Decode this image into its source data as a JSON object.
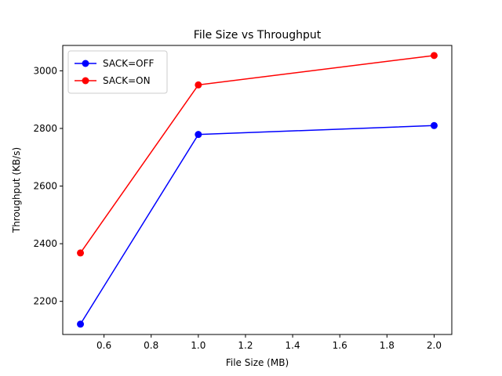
{
  "chart_data": {
    "type": "line",
    "title": "File Size vs Throughput",
    "xlabel": "File Size (MB)",
    "ylabel": "Throughput (KB/s)",
    "x": [
      0.5,
      1.0,
      2.0
    ],
    "series": [
      {
        "name": "SACK=OFF",
        "color": "#0000ff",
        "values": [
          2121,
          2779,
          2810
        ]
      },
      {
        "name": "SACK=ON",
        "color": "#ff0000",
        "values": [
          2368,
          2951,
          3053
        ]
      }
    ],
    "xlim": [
      0.425,
      2.075
    ],
    "ylim": [
      2085,
      3088
    ],
    "xticks": [
      0.6,
      0.8,
      1.0,
      1.2,
      1.4,
      1.6,
      1.8,
      2.0
    ],
    "xtick_labels": [
      "0.6",
      "0.8",
      "1.0",
      "1.2",
      "1.4",
      "1.6",
      "1.8",
      "2.0"
    ],
    "yticks": [
      2200,
      2400,
      2600,
      2800,
      3000
    ],
    "ytick_labels": [
      "2200",
      "2400",
      "2600",
      "2800",
      "3000"
    ],
    "grid": false,
    "legend_position": "top-left",
    "marker": "circle"
  }
}
